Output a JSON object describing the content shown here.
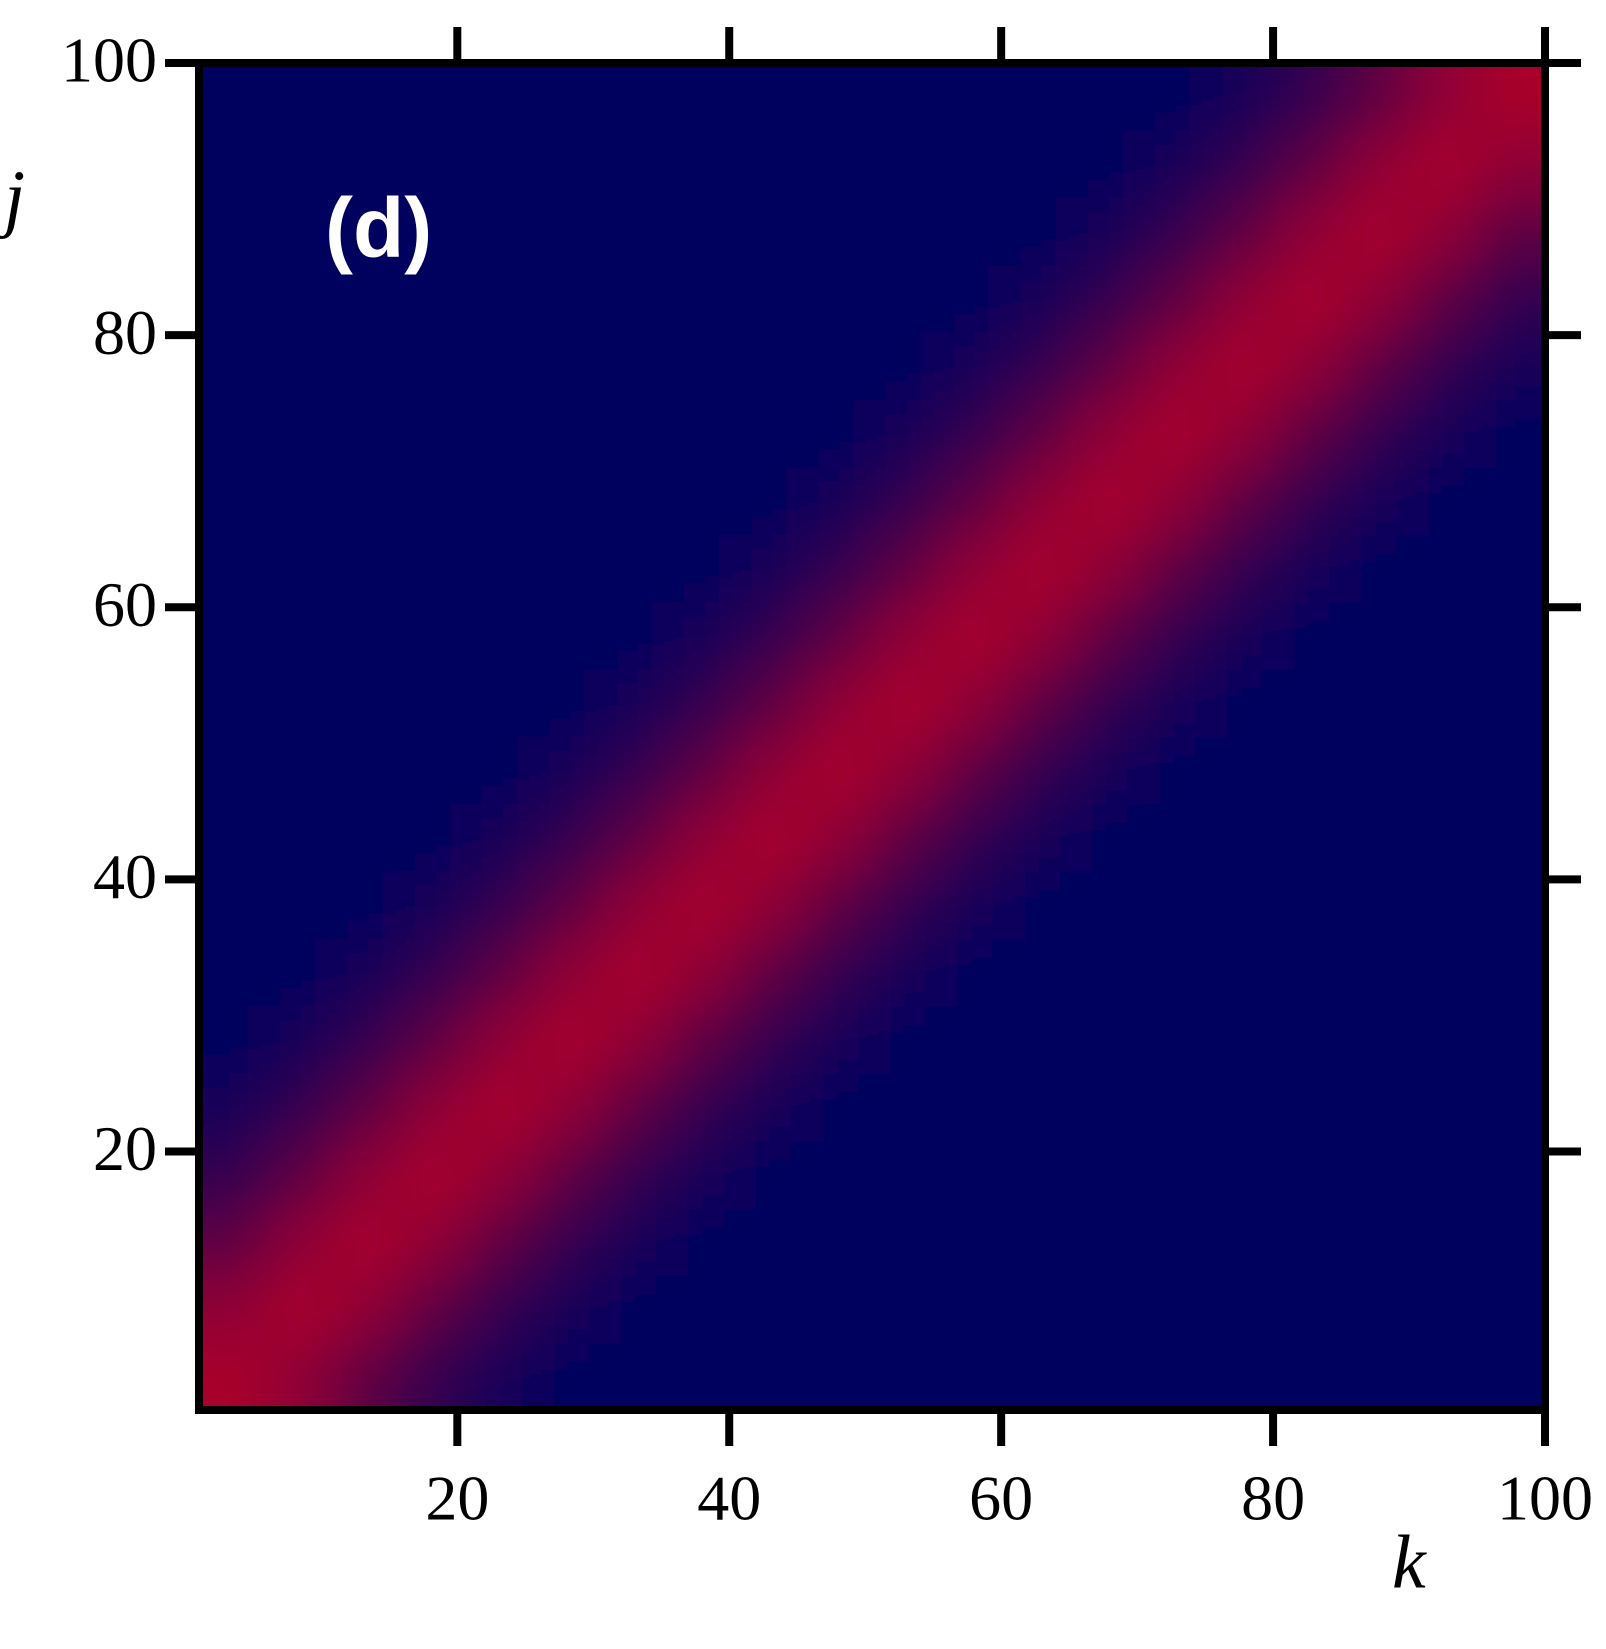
{
  "chart_data": {
    "type": "heatmap",
    "panel_label": "(d)",
    "x_label": "k",
    "y_label": "j",
    "xlim": [
      1,
      100
    ],
    "ylim": [
      1,
      100
    ],
    "xticks": [
      20,
      40,
      60,
      80,
      100
    ],
    "yticks": [
      20,
      40,
      60,
      80,
      100
    ],
    "zlim": [
      0,
      1
    ],
    "colorscale": [
      "#00005e",
      "#a8002c"
    ],
    "z": [
      [
        1,
        0.85,
        0.55,
        0.3,
        0.12,
        0,
        0,
        0,
        0,
        0,
        0,
        0,
        0,
        0,
        0,
        0,
        0,
        0,
        0,
        0
      ],
      [
        0.85,
        1,
        0.85,
        0.55,
        0.3,
        0.12,
        0,
        0,
        0,
        0,
        0,
        0,
        0,
        0,
        0,
        0,
        0,
        0,
        0,
        0
      ],
      [
        0.55,
        0.85,
        1,
        0.85,
        0.55,
        0.3,
        0.12,
        0,
        0,
        0,
        0,
        0,
        0,
        0,
        0,
        0,
        0,
        0,
        0,
        0
      ],
      [
        0.3,
        0.55,
        0.85,
        1,
        0.85,
        0.55,
        0.3,
        0.12,
        0,
        0,
        0,
        0,
        0,
        0,
        0,
        0,
        0,
        0,
        0,
        0
      ],
      [
        0.12,
        0.3,
        0.55,
        0.85,
        1,
        0.85,
        0.55,
        0.3,
        0.12,
        0,
        0,
        0,
        0,
        0,
        0,
        0,
        0,
        0,
        0,
        0
      ],
      [
        0,
        0.12,
        0.3,
        0.55,
        0.85,
        1,
        0.85,
        0.55,
        0.3,
        0.12,
        0,
        0,
        0,
        0,
        0,
        0,
        0,
        0,
        0,
        0
      ],
      [
        0,
        0,
        0.12,
        0.3,
        0.55,
        0.85,
        1,
        0.85,
        0.55,
        0.3,
        0.12,
        0,
        0,
        0,
        0,
        0,
        0,
        0,
        0,
        0
      ],
      [
        0,
        0,
        0,
        0.12,
        0.3,
        0.55,
        0.85,
        1,
        0.85,
        0.55,
        0.3,
        0.12,
        0,
        0,
        0,
        0,
        0,
        0,
        0,
        0
      ],
      [
        0,
        0,
        0,
        0,
        0.12,
        0.3,
        0.55,
        0.85,
        1,
        0.85,
        0.55,
        0.3,
        0.12,
        0,
        0,
        0,
        0,
        0,
        0,
        0
      ],
      [
        0,
        0,
        0,
        0,
        0,
        0.12,
        0.3,
        0.55,
        0.85,
        1,
        0.85,
        0.55,
        0.3,
        0.12,
        0,
        0,
        0,
        0,
        0,
        0
      ],
      [
        0,
        0,
        0,
        0,
        0,
        0,
        0.12,
        0.3,
        0.55,
        0.85,
        1,
        0.85,
        0.55,
        0.3,
        0.12,
        0,
        0,
        0,
        0,
        0
      ],
      [
        0,
        0,
        0,
        0,
        0,
        0,
        0,
        0.12,
        0.3,
        0.55,
        0.85,
        1,
        0.85,
        0.55,
        0.3,
        0.12,
        0,
        0,
        0,
        0
      ],
      [
        0,
        0,
        0,
        0,
        0,
        0,
        0,
        0,
        0.12,
        0.3,
        0.55,
        0.85,
        1,
        0.85,
        0.55,
        0.3,
        0.12,
        0,
        0,
        0
      ],
      [
        0,
        0,
        0,
        0,
        0,
        0,
        0,
        0,
        0,
        0.12,
        0.3,
        0.55,
        0.85,
        1,
        0.85,
        0.55,
        0.3,
        0.12,
        0,
        0
      ],
      [
        0,
        0,
        0,
        0,
        0,
        0,
        0,
        0,
        0,
        0,
        0.12,
        0.3,
        0.55,
        0.85,
        1,
        0.85,
        0.55,
        0.3,
        0.12,
        0
      ],
      [
        0,
        0,
        0,
        0,
        0,
        0,
        0,
        0,
        0,
        0,
        0,
        0.12,
        0.3,
        0.55,
        0.85,
        1,
        0.85,
        0.55,
        0.3,
        0.12
      ],
      [
        0,
        0,
        0,
        0,
        0,
        0,
        0,
        0,
        0,
        0,
        0,
        0,
        0.12,
        0.3,
        0.55,
        0.85,
        1,
        0.85,
        0.55,
        0.3
      ],
      [
        0,
        0,
        0,
        0,
        0,
        0,
        0,
        0,
        0,
        0,
        0,
        0,
        0,
        0.12,
        0.3,
        0.55,
        0.85,
        1,
        0.85,
        0.55
      ],
      [
        0,
        0,
        0,
        0,
        0,
        0,
        0,
        0,
        0,
        0,
        0,
        0,
        0,
        0,
        0.12,
        0.3,
        0.55,
        0.85,
        1,
        0.85
      ],
      [
        0,
        0,
        0,
        0,
        0,
        0,
        0,
        0,
        0,
        0,
        0,
        0,
        0,
        0,
        0,
        0.12,
        0.3,
        0.55,
        0.85,
        1
      ]
    ]
  }
}
